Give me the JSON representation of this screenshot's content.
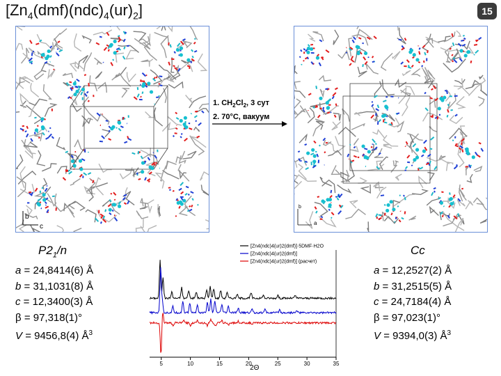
{
  "slide": {
    "title": {
      "main": "[Zn",
      "s1": "4",
      "p1": "(dmf)(ndc)",
      "s2": "4",
      "p2": "(ur)",
      "s3": "2",
      "end": "]"
    },
    "page_number": "15"
  },
  "left_structure": {
    "axis_b": "b",
    "axis_c": "c"
  },
  "right_structure": {
    "axis_b": "b",
    "axis_a": "a"
  },
  "conditions": {
    "step1_pre": "1. CH",
    "step1_s1": "2",
    "step1_mid": "Cl",
    "step1_s2": "2",
    "step1_post": ", 3 сут",
    "step2": "2. 70°C, вакуум"
  },
  "cell_left": {
    "space_group_main": "P2",
    "space_group_sub": "1",
    "space_group_end": "/n",
    "a": "= 24,8414(6) Å",
    "b": "= 31,1031(8) Å",
    "c": "= 12,3400(3) Å",
    "beta": "= 97,318(1)°",
    "V": "= 9456,8(4) Å",
    "V_unit_sup": "3"
  },
  "cell_right": {
    "space_group": "Cc",
    "a": "= 12,2527(2) Å",
    "b": "= 31,2515(5) Å",
    "c": "= 24,7184(4) Å",
    "beta": "= 97,023(1)°",
    "V": "= 9394,0(3) Å",
    "V_unit_sup": "3"
  },
  "param_symbols": {
    "a": "a",
    "b": "b",
    "c": "c",
    "beta": "β",
    "V": "V"
  },
  "chart_data": {
    "type": "line",
    "xlabel": "2Θ",
    "xlim": [
      3,
      35
    ],
    "xticks": [
      5,
      10,
      15,
      20,
      25,
      30,
      35
    ],
    "legend_placement": "top-right",
    "series": [
      {
        "name": "[Zn4(ndc)4(ur)2(dmf)]·5DMF·H2O",
        "color": "#000000",
        "baseline": 3,
        "peaks": [
          [
            4.8,
            7
          ],
          [
            5.3,
            4
          ],
          [
            6.8,
            1.2
          ],
          [
            8.5,
            2
          ],
          [
            9.7,
            1.5
          ],
          [
            11.0,
            1.2
          ],
          [
            12.8,
            1.5
          ],
          [
            13.4,
            2.2
          ],
          [
            14.0,
            1.8
          ],
          [
            15.2,
            1.5
          ],
          [
            16.3,
            1.2
          ],
          [
            18.0,
            0.8
          ],
          [
            20.4,
            1.0
          ],
          [
            22.5,
            0.6
          ],
          [
            25.0,
            0.6
          ],
          [
            28.0,
            0.5
          ]
        ]
      },
      {
        "name": "[Zn4(ndc)4(ur)2(dmf)]",
        "color": "#0000cc",
        "baseline": 0.3,
        "peaks": [
          [
            4.9,
            8.5
          ],
          [
            5.2,
            2
          ],
          [
            7.0,
            1.2
          ],
          [
            8.7,
            2.2
          ],
          [
            9.9,
            1.8
          ],
          [
            11.2,
            1.5
          ],
          [
            12.9,
            1.8
          ],
          [
            13.5,
            2.5
          ],
          [
            14.2,
            2.2
          ],
          [
            15.4,
            1.5
          ],
          [
            16.5,
            1.2
          ],
          [
            18.2,
            0.9
          ],
          [
            20.6,
            0.8
          ],
          [
            22.8,
            0.6
          ],
          [
            25.3,
            0.6
          ],
          [
            28.3,
            0.4
          ]
        ]
      },
      {
        "name": "[Zn4(ndc)4(ur)2(dmf)] (расчет)",
        "color": "#dd0000",
        "baseline": -1.6,
        "peaks": [
          [
            4.95,
            -6
          ],
          [
            5.25,
            2.2
          ],
          [
            7.0,
            -0.6
          ],
          [
            8.8,
            0.5
          ],
          [
            10.0,
            -0.5
          ],
          [
            11.2,
            0.6
          ],
          [
            12.9,
            -0.5
          ],
          [
            13.5,
            0.7
          ],
          [
            14.3,
            -0.6
          ],
          [
            15.4,
            0.4
          ],
          [
            16.5,
            -0.4
          ],
          [
            18.2,
            0.3
          ],
          [
            20.6,
            -0.3
          ]
        ]
      }
    ]
  }
}
